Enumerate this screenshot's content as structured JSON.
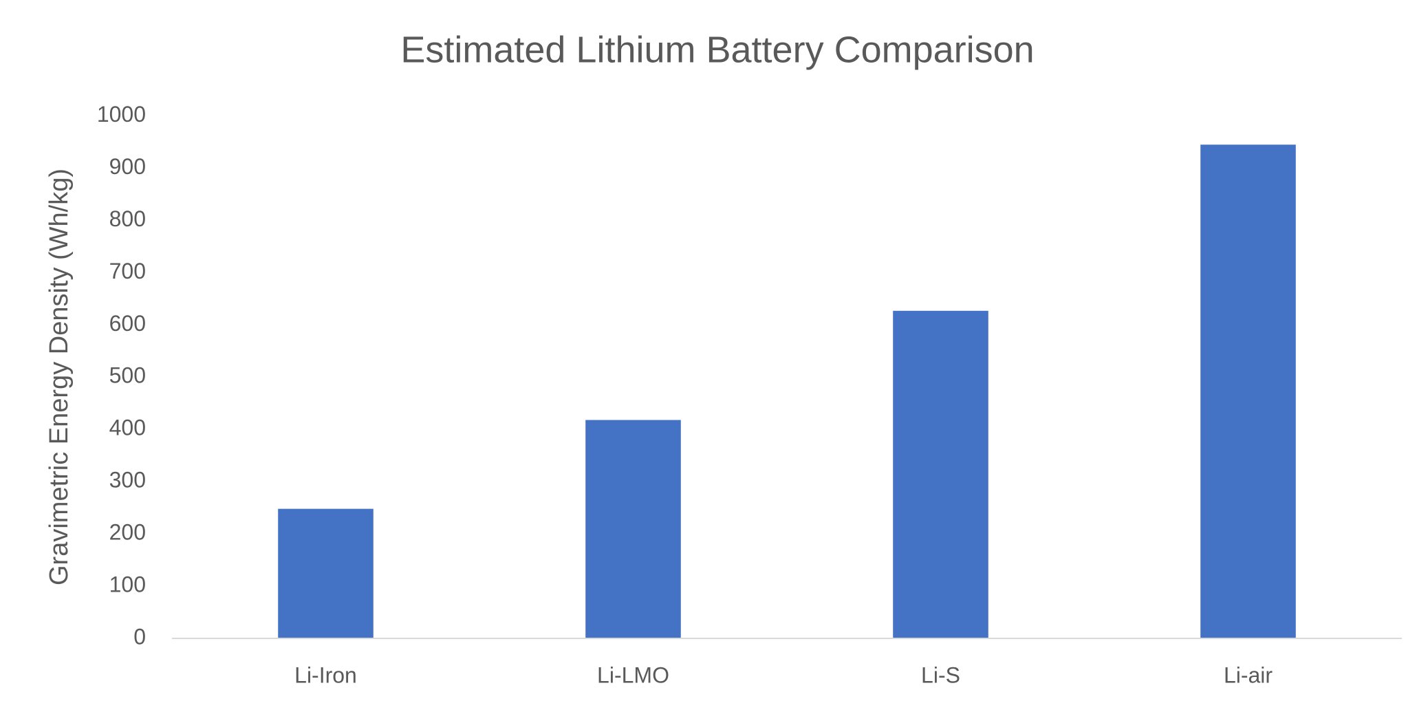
{
  "chart_data": {
    "type": "bar",
    "title": "Estimated Lithium Battery Comparison",
    "y_label": "Gravimetric Energy Density (Wh/kg)",
    "categories": [
      "Li-Iron",
      "Li-LMO",
      "Li-S",
      "Li-air"
    ],
    "values": [
      248,
      418,
      627,
      945
    ],
    "color": "#4472c4",
    "ylim": [
      0,
      1000
    ],
    "yticks": [
      0,
      100,
      200,
      300,
      400,
      500,
      600,
      700,
      800,
      900,
      1000
    ],
    "grid": false
  }
}
